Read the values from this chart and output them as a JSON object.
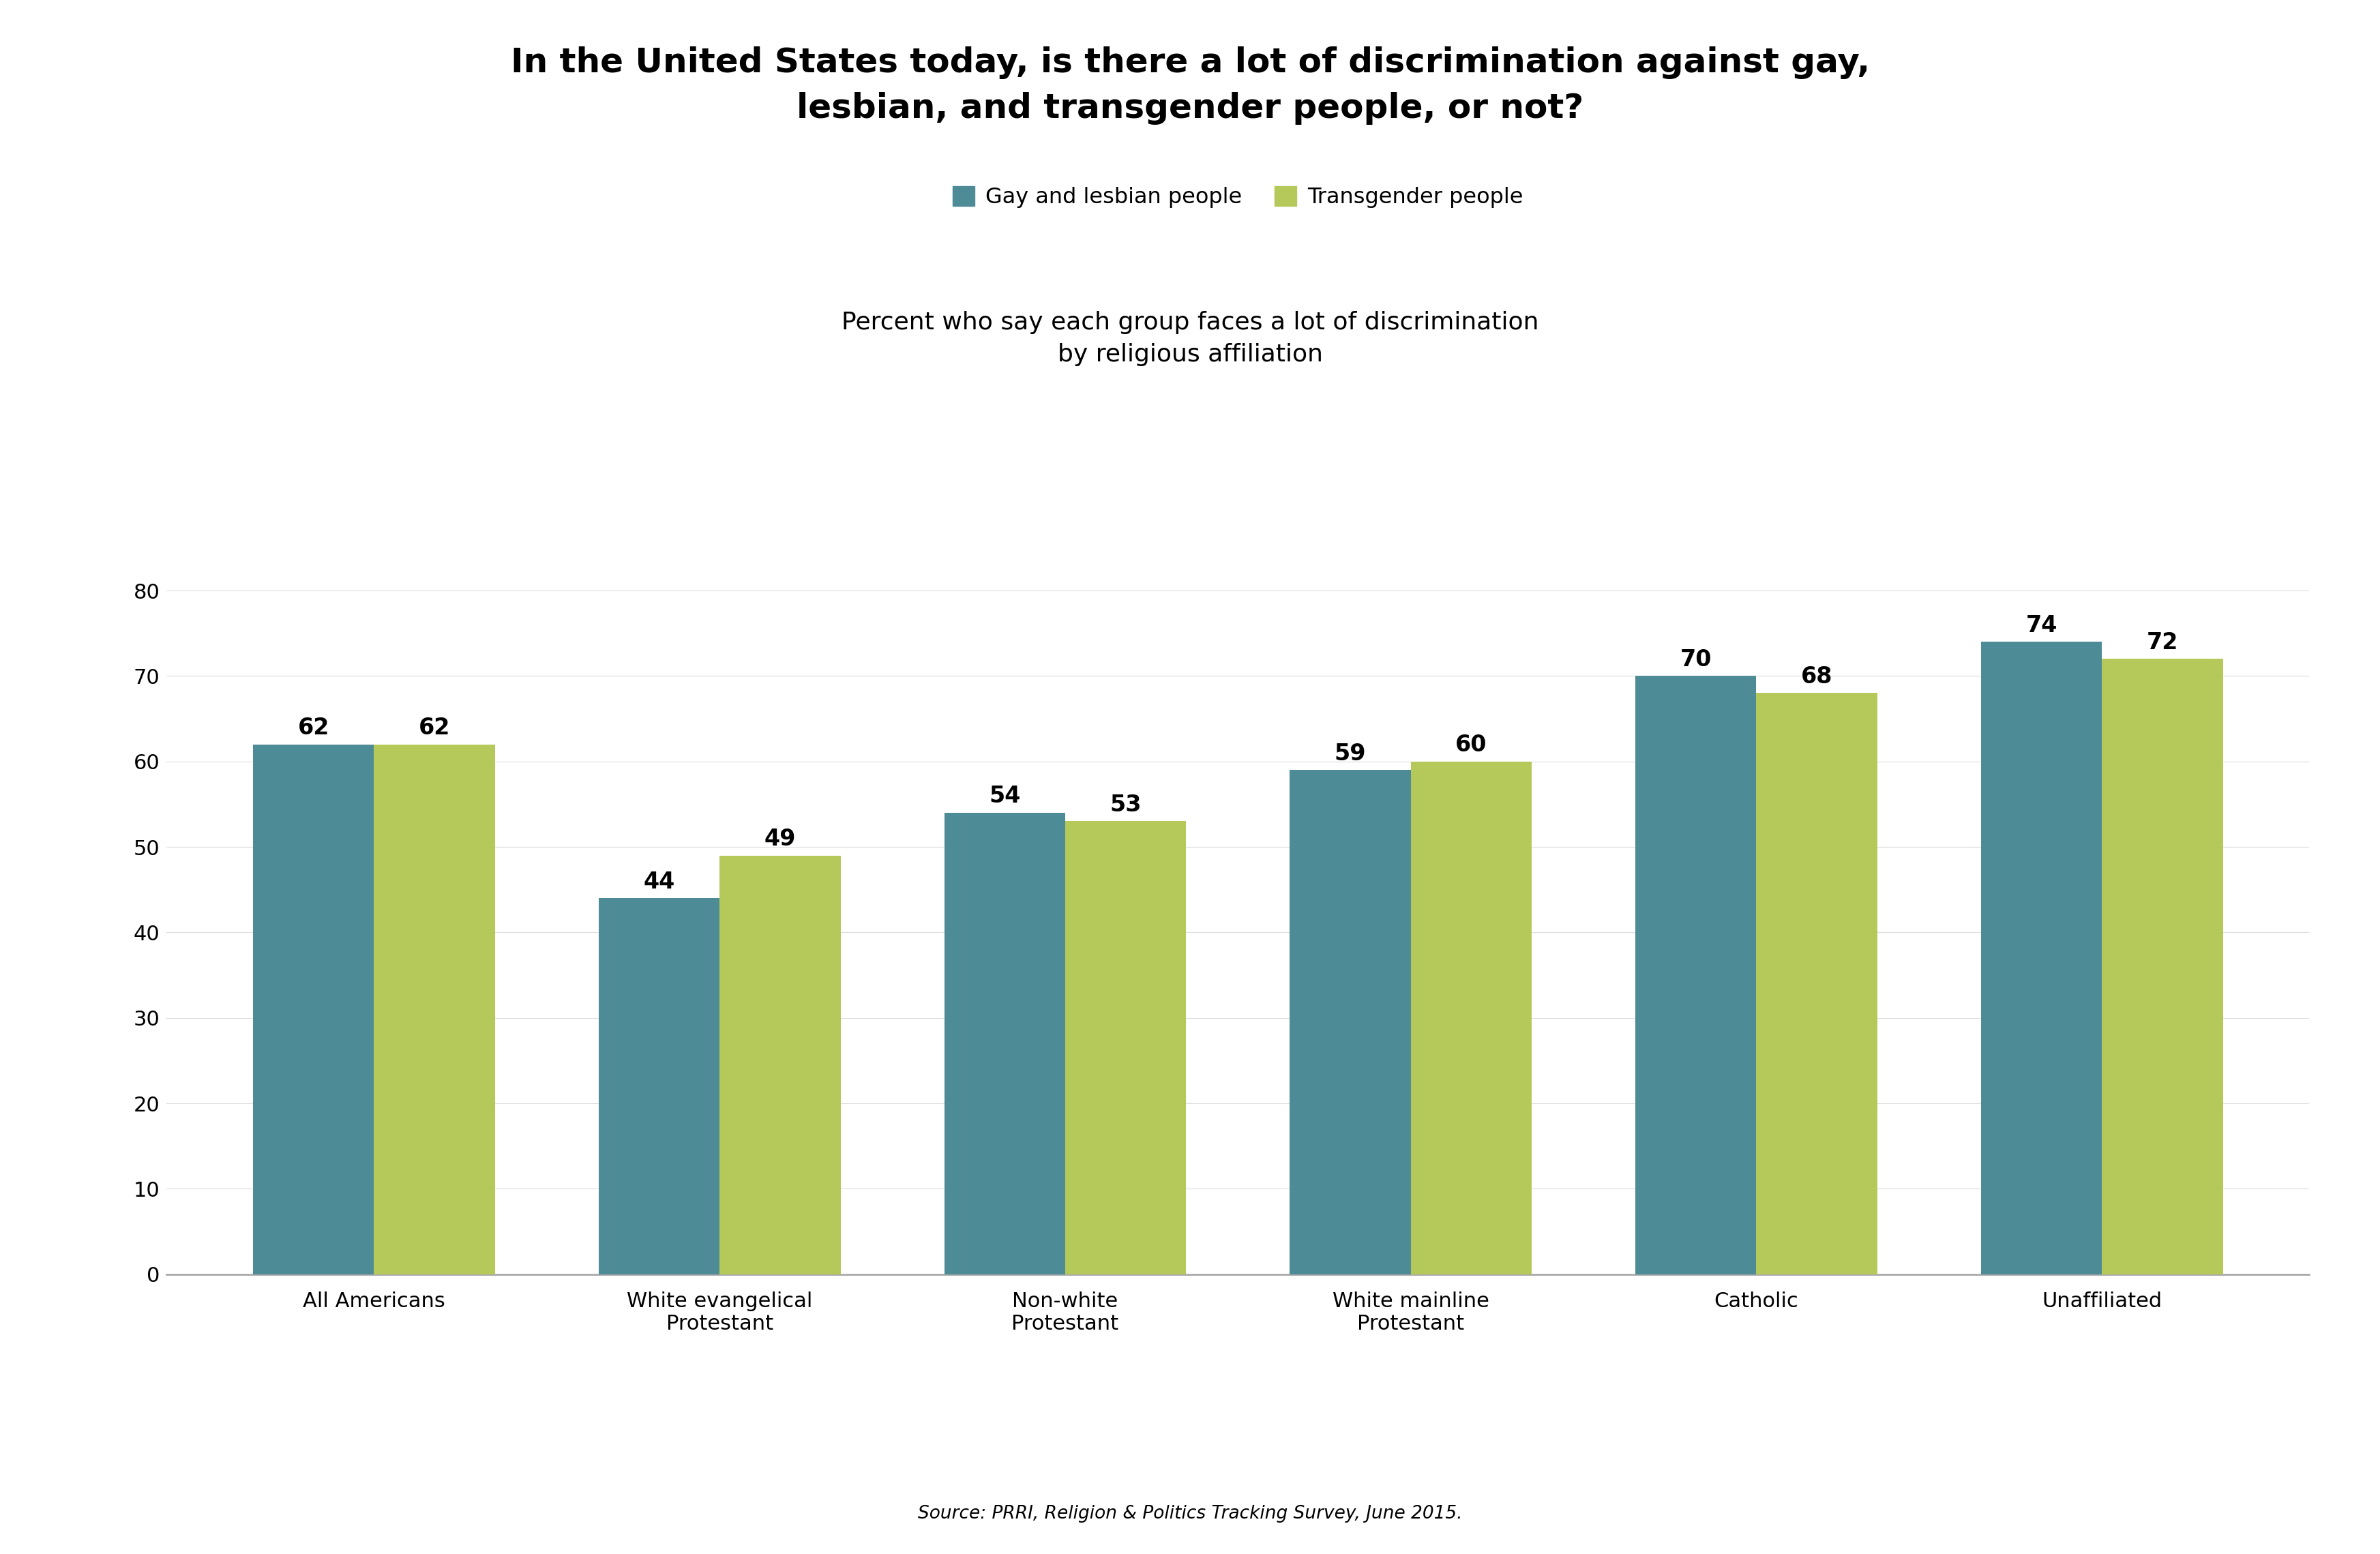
{
  "title_line1": "In the United States today, is there a lot of discrimination against gay,",
  "title_line2": "lesbian, and transgender people, or not?",
  "subtitle_line1": "Percent who say each group faces a lot of discrimination",
  "subtitle_line2": "by religious affiliation",
  "categories": [
    "All Americans",
    "White evangelical\nProtestant",
    "Non-white\nProtestant",
    "White mainline\nProtestant",
    "Catholic",
    "Unaffiliated"
  ],
  "gay_values": [
    62,
    44,
    54,
    59,
    70,
    74
  ],
  "trans_values": [
    62,
    49,
    53,
    60,
    68,
    72
  ],
  "gay_color": "#4d8c96",
  "trans_color": "#b5c95a",
  "legend_gay": "Gay and lesbian people",
  "legend_trans": "Transgender people",
  "source": "Source: PRRI, Religion & Politics Tracking Survey, June 2015.",
  "ylim": [
    0,
    80
  ],
  "yticks": [
    0,
    10,
    20,
    30,
    40,
    50,
    60,
    70,
    80
  ],
  "background_color": "#ffffff",
  "bar_width": 0.35,
  "title_fontsize": 36,
  "subtitle_fontsize": 26,
  "tick_fontsize": 22,
  "value_fontsize": 24,
  "legend_fontsize": 23,
  "source_fontsize": 19
}
